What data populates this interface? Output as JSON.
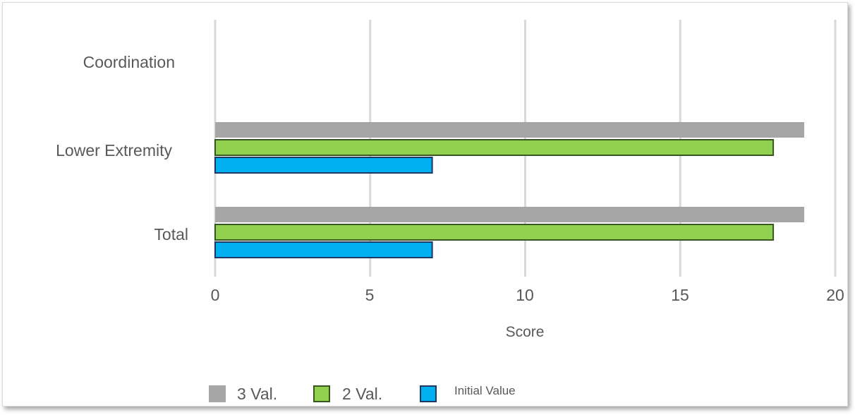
{
  "chart_data": {
    "type": "bar",
    "orientation": "horizontal",
    "categories": [
      "Coordination",
      "Lower Extremity",
      "Total"
    ],
    "series": [
      {
        "name": "3 Val.",
        "values": [
          null,
          19,
          19
        ],
        "color": "#a6a6a6"
      },
      {
        "name": "2 Val.",
        "values": [
          null,
          18,
          18
        ],
        "color": "#92d050"
      },
      {
        "name": "Initial Value",
        "values": [
          null,
          7,
          7
        ],
        "color": "#00b0f0"
      }
    ],
    "xlabel": "Score",
    "xlim": [
      0,
      20
    ],
    "xticks": [
      "0",
      "5",
      "10",
      "15",
      "20"
    ],
    "grid": "vertical",
    "legend_position": "bottom"
  }
}
